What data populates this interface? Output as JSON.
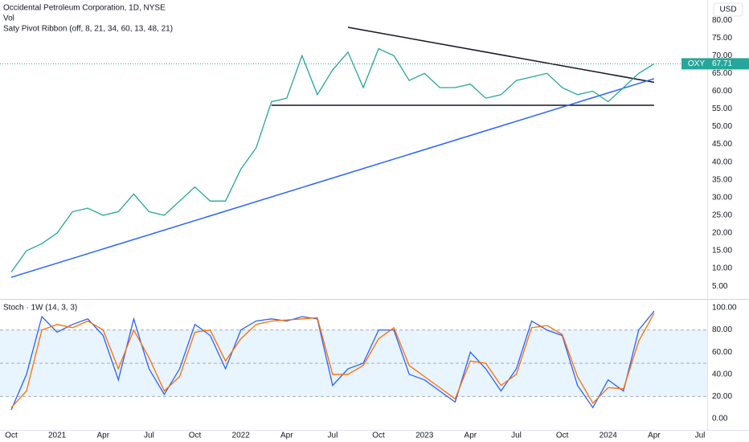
{
  "chart_data": [
    {
      "type": "line",
      "title": "Occidental Petroleum Corporation, 1D, NYSE",
      "subtitles": [
        "Vol",
        "Saty Pivot Ribbon (off, 8, 21, 34, 60, 13, 48, 21)"
      ],
      "currency": "USD",
      "x": [
        "2020-10",
        "2020-11",
        "2020-12",
        "2021-01",
        "2021-02",
        "2021-03",
        "2021-04",
        "2021-05",
        "2021-06",
        "2021-07",
        "2021-08",
        "2021-09",
        "2021-10",
        "2021-11",
        "2021-12",
        "2022-01",
        "2022-02",
        "2022-03",
        "2022-04",
        "2022-05",
        "2022-06",
        "2022-07",
        "2022-08",
        "2022-09",
        "2022-10",
        "2022-11",
        "2022-12",
        "2023-01",
        "2023-02",
        "2023-03",
        "2023-04",
        "2023-05",
        "2023-06",
        "2023-07",
        "2023-08",
        "2023-09",
        "2023-10",
        "2023-11",
        "2023-12",
        "2024-01",
        "2024-02",
        "2024-03",
        "2024-04"
      ],
      "series": [
        {
          "name": "OXY",
          "color": "#26a69a",
          "values": [
            9,
            15,
            17,
            20,
            26,
            27,
            25,
            26,
            31,
            26,
            25,
            29,
            33,
            29,
            29,
            38,
            44,
            57,
            58,
            70,
            59,
            66,
            71,
            61,
            72,
            70,
            63,
            65,
            61,
            61,
            62,
            58,
            59,
            63,
            64,
            65,
            61,
            59,
            60,
            57,
            61,
            65,
            67.71
          ]
        }
      ],
      "trendlines": [
        {
          "x": [
            "2022-08",
            "2024-04"
          ],
          "y": [
            78,
            62.5
          ],
          "color": "#131722"
        },
        {
          "x": [
            "2022-03",
            "2024-04"
          ],
          "y": [
            56,
            56
          ],
          "color": "#131722"
        },
        {
          "x": [
            "2020-10",
            "2024-04"
          ],
          "y": [
            7.5,
            63.5
          ],
          "color": "#2962ff"
        }
      ],
      "xlim": [
        "2020-10",
        "2024-07"
      ],
      "xticks": [
        {
          "value": "2020-10",
          "label": "Oct"
        },
        {
          "value": "2021-01",
          "label": "2021"
        },
        {
          "value": "2021-04",
          "label": "Apr"
        },
        {
          "value": "2021-07",
          "label": "Jul"
        },
        {
          "value": "2021-10",
          "label": "Oct"
        },
        {
          "value": "2022-01",
          "label": "2022"
        },
        {
          "value": "2022-04",
          "label": "Apr"
        },
        {
          "value": "2022-07",
          "label": "Jul"
        },
        {
          "value": "2022-10",
          "label": "Oct"
        },
        {
          "value": "2023-01",
          "label": "2023"
        },
        {
          "value": "2023-04",
          "label": "Apr"
        },
        {
          "value": "2023-07",
          "label": "Jul"
        },
        {
          "value": "2023-10",
          "label": "Oct"
        },
        {
          "value": "2024-01",
          "label": "2024"
        },
        {
          "value": "2024-04",
          "label": "Apr"
        },
        {
          "value": "2024-07",
          "label": "Jul"
        }
      ],
      "ylim": [
        1.4,
        85.7
      ],
      "yticks": [
        {
          "value": 5,
          "label": "5.00"
        },
        {
          "value": 10,
          "label": "10.00"
        },
        {
          "value": 15,
          "label": "15.00"
        },
        {
          "value": 20,
          "label": "20.00"
        },
        {
          "value": 25,
          "label": "25.00"
        },
        {
          "value": 30,
          "label": "30.00"
        },
        {
          "value": 35,
          "label": "35.00"
        },
        {
          "value": 40,
          "label": "40.00"
        },
        {
          "value": 45,
          "label": "45.00"
        },
        {
          "value": 50,
          "label": "50.00"
        },
        {
          "value": 55,
          "label": "55.00"
        },
        {
          "value": 60,
          "label": "60.00"
        },
        {
          "value": 65,
          "label": "65.00"
        },
        {
          "value": 70,
          "label": "70.00"
        },
        {
          "value": 75,
          "label": "75.00"
        },
        {
          "value": 80,
          "label": "80.00"
        }
      ],
      "grid": false
    },
    {
      "type": "line",
      "title": "Stoch · 1W (14, 3, 3)",
      "x": [
        "2020-10",
        "2020-11",
        "2020-12",
        "2021-01",
        "2021-02",
        "2021-03",
        "2021-04",
        "2021-05",
        "2021-06",
        "2021-07",
        "2021-08",
        "2021-09",
        "2021-10",
        "2021-11",
        "2021-12",
        "2022-01",
        "2022-02",
        "2022-03",
        "2022-04",
        "2022-05",
        "2022-06",
        "2022-07",
        "2022-08",
        "2022-09",
        "2022-10",
        "2022-11",
        "2022-12",
        "2023-01",
        "2023-02",
        "2023-03",
        "2023-04",
        "2023-05",
        "2023-06",
        "2023-07",
        "2023-08",
        "2023-09",
        "2023-10",
        "2023-11",
        "2023-12",
        "2024-01",
        "2024-02",
        "2024-03",
        "2024-04"
      ],
      "series": [
        {
          "color": "#2962ff",
          "values": [
            8,
            40,
            92,
            78,
            85,
            90,
            75,
            35,
            90,
            45,
            22,
            45,
            85,
            75,
            45,
            80,
            88,
            90,
            88,
            92,
            90,
            30,
            45,
            50,
            80,
            80,
            40,
            35,
            25,
            15,
            60,
            45,
            25,
            45,
            88,
            80,
            75,
            30,
            10,
            35,
            25,
            80,
            97
          ]
        },
        {
          "color": "#ff6d00",
          "values": [
            10,
            25,
            80,
            85,
            82,
            88,
            80,
            45,
            80,
            55,
            25,
            38,
            78,
            80,
            52,
            72,
            85,
            88,
            89,
            90,
            91,
            40,
            40,
            48,
            72,
            82,
            48,
            38,
            28,
            18,
            52,
            50,
            30,
            40,
            82,
            84,
            76,
            38,
            14,
            28,
            27,
            70,
            95
          ]
        }
      ],
      "levels": [
        20,
        50,
        80
      ],
      "ylim": [
        -10.1,
        107.2
      ],
      "yticks": [
        {
          "value": 0,
          "label": "0.00"
        },
        {
          "value": 20,
          "label": "20.00"
        },
        {
          "value": 40,
          "label": "40.00"
        },
        {
          "value": 60,
          "label": "60.00"
        },
        {
          "value": 80,
          "label": "80.00"
        },
        {
          "value": 100,
          "label": "100.00"
        }
      ],
      "grid": false
    }
  ]
}
